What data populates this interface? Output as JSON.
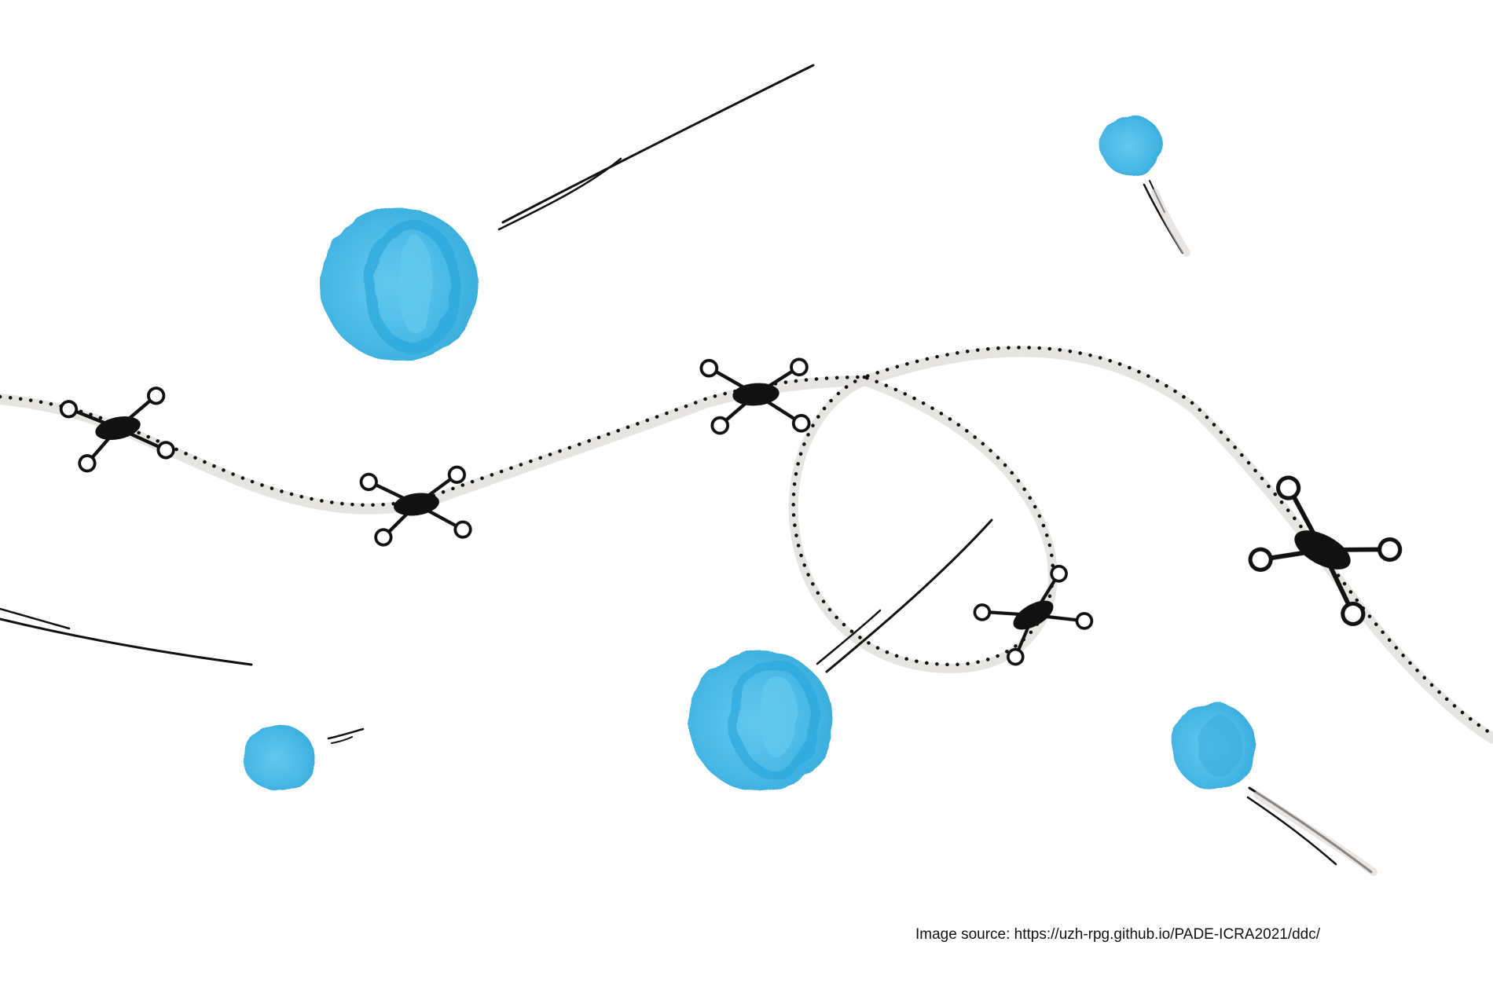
{
  "caption": {
    "text": "Image source: https://uzh-rpg.github.io/PADE-ICRA2021/ddc/"
  },
  "colors": {
    "background": "#ffffff",
    "ball": "#4fc0ea",
    "ball_shade": "#2aa6dc",
    "ink": "#111111",
    "trail_shadow": "#e3e0dc"
  },
  "icons": {
    "drone": "quadrotor-drone-icon",
    "ball": "dynamic-obstacle-ball-icon"
  }
}
